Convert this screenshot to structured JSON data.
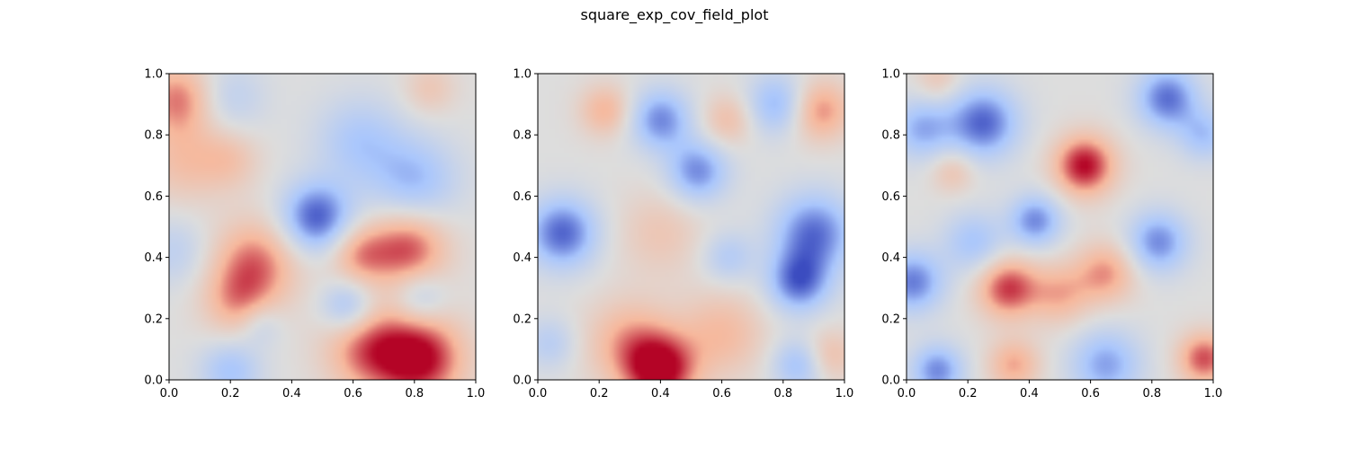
{
  "figure": {
    "title": "square_exp_cov_field_plot"
  },
  "chart_data": [
    {
      "type": "heatmap",
      "title": "",
      "xlabel": "",
      "ylabel": "",
      "xlim": [
        0.0,
        1.0
      ],
      "ylim": [
        0.0,
        1.0
      ],
      "colormap": "coolwarm",
      "colormap_stops": [
        "#3b4cc0",
        "#aac7fd",
        "#dddddd",
        "#f7b89c",
        "#b40426"
      ],
      "grid": false,
      "xticks": [
        "0.0",
        "0.2",
        "0.4",
        "0.6",
        "0.8",
        "1.0"
      ],
      "yticks": [
        "0.0",
        "0.2",
        "0.4",
        "0.6",
        "0.8",
        "1.0"
      ],
      "field_features": [
        {
          "x": 0.48,
          "y": 0.53,
          "value": -0.95,
          "spread": 0.08
        },
        {
          "x": 0.8,
          "y": 0.65,
          "value": -0.55,
          "spread": 0.1
        },
        {
          "x": 0.62,
          "y": 0.78,
          "value": -0.45,
          "spread": 0.1
        },
        {
          "x": 0.78,
          "y": 0.43,
          "value": 0.8,
          "spread": 0.09
        },
        {
          "x": 0.62,
          "y": 0.41,
          "value": 0.55,
          "spread": 0.07
        },
        {
          "x": 0.82,
          "y": 0.07,
          "value": 1.0,
          "spread": 0.1
        },
        {
          "x": 0.65,
          "y": 0.1,
          "value": 0.7,
          "spread": 0.1
        },
        {
          "x": 0.28,
          "y": 0.38,
          "value": 0.7,
          "spread": 0.1
        },
        {
          "x": 0.22,
          "y": 0.25,
          "value": 0.45,
          "spread": 0.08
        },
        {
          "x": 0.03,
          "y": 0.92,
          "value": 0.65,
          "spread": 0.08
        },
        {
          "x": 0.05,
          "y": 0.72,
          "value": 0.4,
          "spread": 0.1
        },
        {
          "x": 0.2,
          "y": 0.72,
          "value": 0.3,
          "spread": 0.07
        },
        {
          "x": 0.58,
          "y": 0.24,
          "value": -0.55,
          "spread": 0.06
        },
        {
          "x": 0.82,
          "y": 0.27,
          "value": -0.4,
          "spread": 0.06
        },
        {
          "x": 0.2,
          "y": 0.03,
          "value": -0.5,
          "spread": 0.07
        },
        {
          "x": 0.3,
          "y": 0.18,
          "value": -0.3,
          "spread": 0.05
        },
        {
          "x": 0.02,
          "y": 0.42,
          "value": -0.3,
          "spread": 0.08
        },
        {
          "x": 0.2,
          "y": 0.92,
          "value": -0.3,
          "spread": 0.08
        },
        {
          "x": 0.85,
          "y": 0.95,
          "value": 0.3,
          "spread": 0.06
        }
      ]
    },
    {
      "type": "heatmap",
      "title": "",
      "xlabel": "",
      "ylabel": "",
      "xlim": [
        0.0,
        1.0
      ],
      "ylim": [
        0.0,
        1.0
      ],
      "colormap": "coolwarm",
      "colormap_stops": [
        "#3b4cc0",
        "#aac7fd",
        "#dddddd",
        "#f7b89c",
        "#b40426"
      ],
      "grid": false,
      "xticks": [
        "0.0",
        "0.2",
        "0.4",
        "0.6",
        "0.8",
        "1.0"
      ],
      "yticks": [
        "0.0",
        "0.2",
        "0.4",
        "0.6",
        "0.8",
        "1.0"
      ],
      "field_features": [
        {
          "x": 0.4,
          "y": 0.03,
          "value": 1.0,
          "spread": 0.08
        },
        {
          "x": 0.3,
          "y": 0.12,
          "value": 0.55,
          "spread": 0.1
        },
        {
          "x": 0.6,
          "y": 0.15,
          "value": 0.45,
          "spread": 0.1
        },
        {
          "x": 0.95,
          "y": 0.08,
          "value": 0.4,
          "spread": 0.06
        },
        {
          "x": 0.92,
          "y": 0.88,
          "value": 0.65,
          "spread": 0.07
        },
        {
          "x": 0.22,
          "y": 0.88,
          "value": 0.5,
          "spread": 0.06
        },
        {
          "x": 0.62,
          "y": 0.85,
          "value": 0.4,
          "spread": 0.06
        },
        {
          "x": 0.4,
          "y": 0.48,
          "value": 0.3,
          "spread": 0.1
        },
        {
          "x": 0.08,
          "y": 0.48,
          "value": -0.9,
          "spread": 0.08
        },
        {
          "x": 0.4,
          "y": 0.85,
          "value": -0.75,
          "spread": 0.07
        },
        {
          "x": 0.52,
          "y": 0.68,
          "value": -0.75,
          "spread": 0.07
        },
        {
          "x": 0.9,
          "y": 0.48,
          "value": -0.85,
          "spread": 0.09
        },
        {
          "x": 0.85,
          "y": 0.32,
          "value": -0.85,
          "spread": 0.07
        },
        {
          "x": 0.78,
          "y": 0.9,
          "value": -0.6,
          "spread": 0.07
        },
        {
          "x": 0.85,
          "y": 0.05,
          "value": -0.55,
          "spread": 0.06
        },
        {
          "x": 0.62,
          "y": 0.4,
          "value": -0.4,
          "spread": 0.06
        },
        {
          "x": 0.04,
          "y": 0.12,
          "value": -0.35,
          "spread": 0.06
        }
      ]
    },
    {
      "type": "heatmap",
      "title": "",
      "xlabel": "",
      "ylabel": "",
      "xlim": [
        0.0,
        1.0
      ],
      "ylim": [
        0.0,
        1.0
      ],
      "colormap": "coolwarm",
      "colormap_stops": [
        "#3b4cc0",
        "#aac7fd",
        "#dddddd",
        "#f7b89c",
        "#b40426"
      ],
      "grid": false,
      "xticks": [
        "0.0",
        "0.2",
        "0.4",
        "0.6",
        "0.8",
        "1.0"
      ],
      "yticks": [
        "0.0",
        "0.2",
        "0.4",
        "0.6",
        "0.8",
        "1.0"
      ],
      "field_features": [
        {
          "x": 0.58,
          "y": 0.7,
          "value": 1.0,
          "spread": 0.07
        },
        {
          "x": 0.33,
          "y": 0.3,
          "value": 0.85,
          "spread": 0.07
        },
        {
          "x": 0.5,
          "y": 0.28,
          "value": 0.5,
          "spread": 0.07
        },
        {
          "x": 0.65,
          "y": 0.35,
          "value": 0.6,
          "spread": 0.07
        },
        {
          "x": 0.97,
          "y": 0.07,
          "value": 0.8,
          "spread": 0.06
        },
        {
          "x": 0.35,
          "y": 0.05,
          "value": 0.55,
          "spread": 0.06
        },
        {
          "x": 0.15,
          "y": 0.68,
          "value": 0.35,
          "spread": 0.05
        },
        {
          "x": 0.1,
          "y": 0.98,
          "value": 0.3,
          "spread": 0.05
        },
        {
          "x": 0.25,
          "y": 0.84,
          "value": -0.9,
          "spread": 0.08
        },
        {
          "x": 0.05,
          "y": 0.82,
          "value": -0.6,
          "spread": 0.07
        },
        {
          "x": 0.85,
          "y": 0.92,
          "value": -0.85,
          "spread": 0.07
        },
        {
          "x": 0.42,
          "y": 0.52,
          "value": -0.75,
          "spread": 0.06
        },
        {
          "x": 0.02,
          "y": 0.32,
          "value": -0.8,
          "spread": 0.07
        },
        {
          "x": 0.1,
          "y": 0.03,
          "value": -0.75,
          "spread": 0.06
        },
        {
          "x": 0.82,
          "y": 0.45,
          "value": -0.75,
          "spread": 0.07
        },
        {
          "x": 0.65,
          "y": 0.05,
          "value": -0.65,
          "spread": 0.08
        },
        {
          "x": 0.97,
          "y": 0.8,
          "value": -0.5,
          "spread": 0.06
        },
        {
          "x": 0.22,
          "y": 0.45,
          "value": -0.5,
          "spread": 0.07
        }
      ]
    }
  ]
}
